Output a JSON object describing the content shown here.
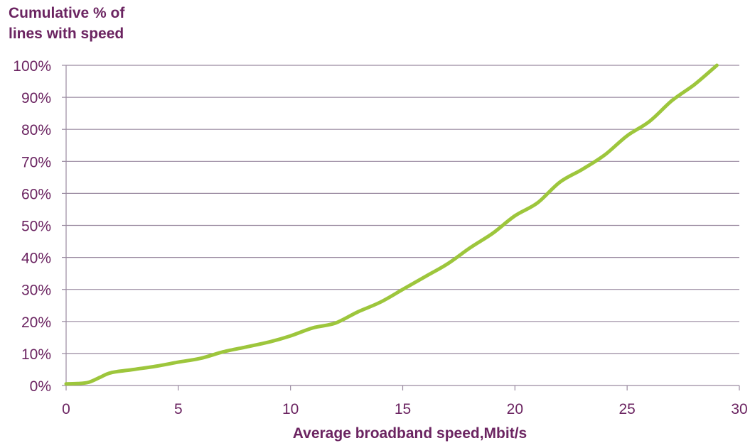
{
  "chart_data": {
    "type": "line",
    "ylabel_lines": [
      "Cumulative % of",
      "lines with speed"
    ],
    "xlabel": "Average broadband speed,Mbit/s",
    "xlim": [
      0,
      30
    ],
    "ylim": [
      0,
      100
    ],
    "x_ticks": [
      0,
      5,
      10,
      15,
      20,
      25,
      30
    ],
    "x_tick_labels": [
      "0",
      "5",
      "10",
      "15",
      "20",
      "25",
      "30"
    ],
    "y_ticks": [
      0,
      10,
      20,
      30,
      40,
      50,
      60,
      70,
      80,
      90,
      100
    ],
    "y_tick_labels": [
      "0%",
      "10%",
      "20%",
      "30%",
      "40%",
      "50%",
      "60%",
      "70%",
      "80%",
      "90%",
      "100%"
    ],
    "grid": "horizontal",
    "series_color": "#9dc63c",
    "series": [
      {
        "x": [
          0,
          0.5,
          1,
          1.5,
          2,
          3,
          4,
          5,
          6,
          7,
          8,
          9,
          10,
          11,
          12,
          13,
          14,
          15,
          16,
          17,
          18,
          19,
          20,
          21,
          22,
          23,
          24,
          25,
          26,
          27,
          28,
          29
        ],
        "values": [
          0.5,
          0.6,
          1,
          2.5,
          4,
          5,
          6,
          7.3,
          8.5,
          10.5,
          12,
          13.5,
          15.5,
          18,
          19.5,
          23,
          26,
          30,
          34,
          38,
          43,
          47.5,
          53,
          57,
          63.5,
          67.5,
          72,
          78,
          82.5,
          89,
          94,
          100
        ]
      }
    ]
  }
}
